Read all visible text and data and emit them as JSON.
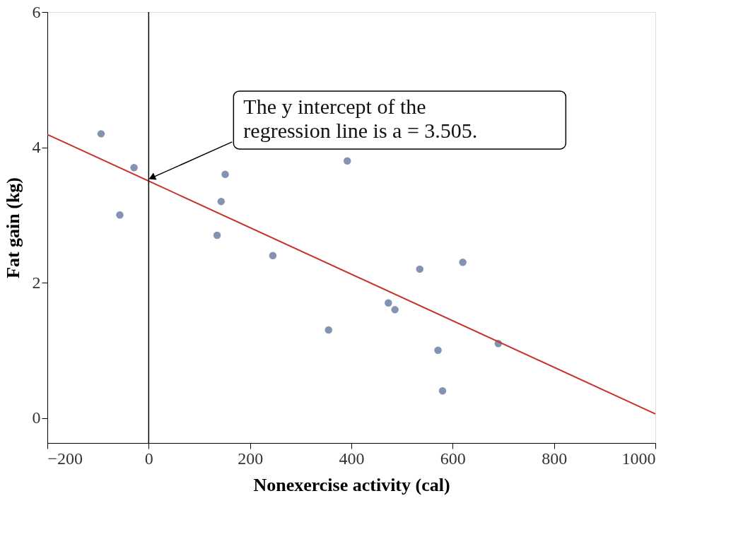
{
  "chart_data": {
    "type": "scatter",
    "xlabel": "Nonexercise activity (cal)",
    "ylabel": "Fat gain (kg)",
    "x": [
      -94,
      -57,
      -29,
      135,
      143,
      151,
      245,
      355,
      392,
      473,
      486,
      535,
      571,
      580,
      620,
      690
    ],
    "series": [
      {
        "type": "scatter",
        "color": "#8593b3",
        "values": [
          4.2,
          3.0,
          3.7,
          2.7,
          3.2,
          3.6,
          2.4,
          1.3,
          3.8,
          1.7,
          1.6,
          2.2,
          1.0,
          0.4,
          2.3,
          1.1
        ]
      },
      {
        "type": "line",
        "marker": "none",
        "color": "#c8312b",
        "x": [
          -200,
          1000
        ],
        "values": [
          4.19,
          0.06
        ]
      }
    ],
    "xlim": [
      -200,
      1000
    ],
    "ylim": [
      -0.37,
      6
    ],
    "xticks": [
      {
        "value": -200,
        "label": "−200"
      },
      0,
      200,
      400,
      600,
      800,
      1000
    ],
    "yticks": [
      0,
      2,
      4,
      6
    ],
    "ref_lines": [
      {
        "axis": "x",
        "value": 0,
        "color": "#000000"
      }
    ],
    "annotations": [
      {
        "text": "The y intercept of the regression line is a = 3.505.",
        "x": 0,
        "y": 3.505
      }
    ],
    "grid": false,
    "marker": "circle"
  }
}
